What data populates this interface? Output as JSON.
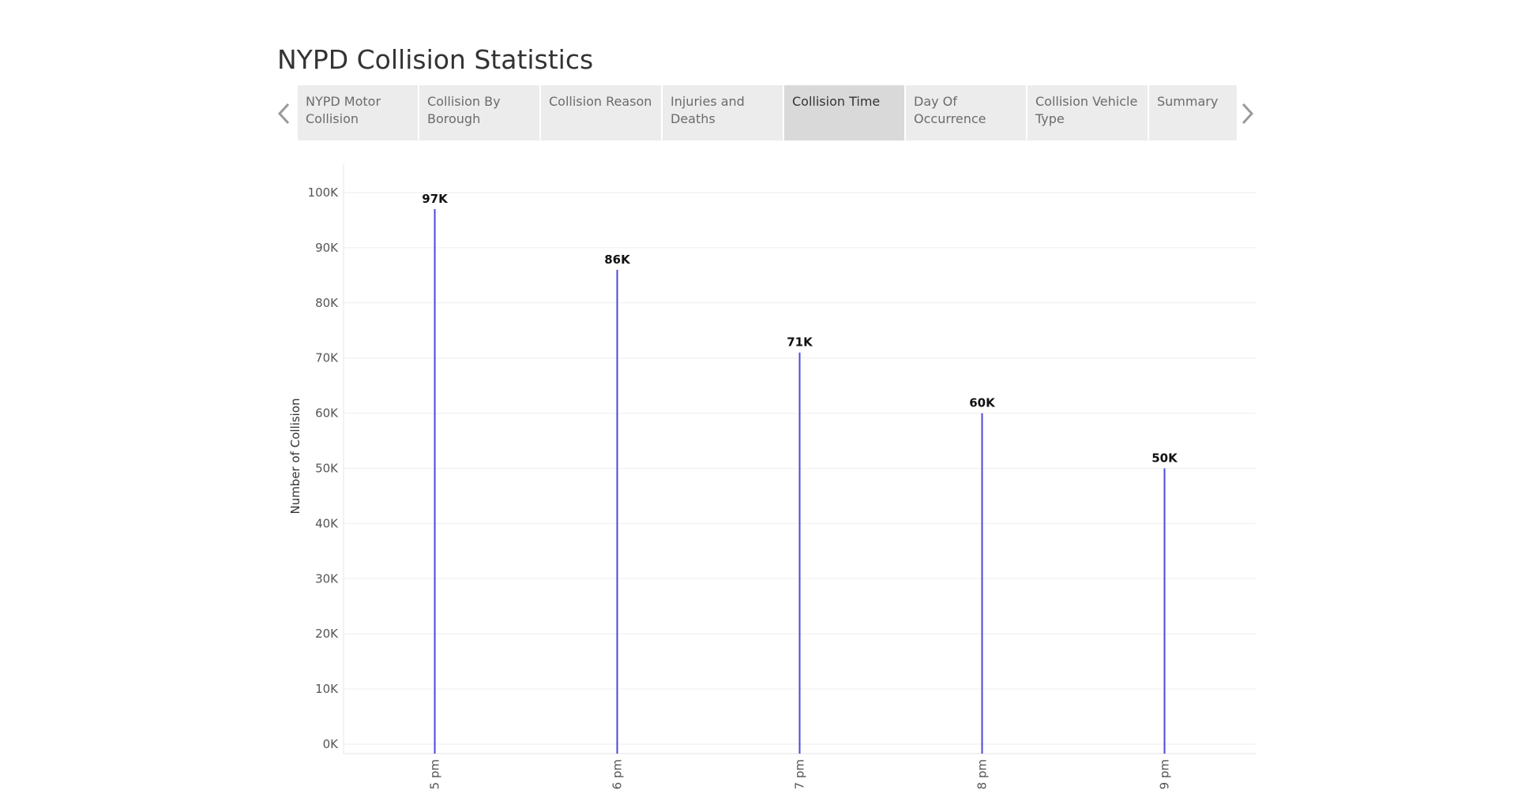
{
  "story": {
    "title": "NYPD Collision Statistics"
  },
  "navigation": {
    "prev_icon": "chevron-left-icon",
    "next_icon": "chevron-right-icon",
    "tabs": [
      {
        "label": "NYPD Motor Collision",
        "active": false
      },
      {
        "label": "Collision By Borough",
        "active": false
      },
      {
        "label": "Collision Reason",
        "active": false
      },
      {
        "label": "Injuries and Deaths",
        "active": false
      },
      {
        "label": "Collision Time",
        "active": true
      },
      {
        "label": "Day Of Occurrence",
        "active": false
      },
      {
        "label": "Collision Vehicle Type",
        "active": false
      },
      {
        "label": "Summary",
        "active": false
      }
    ]
  },
  "colors": {
    "bar": "#4a4ad8",
    "grid": "#eeeeee",
    "active_tab": "#d9d9d9",
    "tab": "#ececec"
  },
  "chart_data": {
    "type": "bar",
    "ylabel": "Number of Collision",
    "xlabel": "",
    "categories": [
      "5 pm",
      "6 pm",
      "7 pm",
      "8 pm",
      "9 pm"
    ],
    "values": [
      97000,
      86000,
      71000,
      60000,
      50000
    ],
    "data_labels": [
      "97K",
      "86K",
      "71K",
      "60K",
      "50K"
    ],
    "ylim": [
      0,
      100000
    ],
    "yticks": [
      0,
      10000,
      20000,
      30000,
      40000,
      50000,
      60000,
      70000,
      80000,
      90000,
      100000
    ],
    "ytick_labels": [
      "0K",
      "10K",
      "20K",
      "30K",
      "40K",
      "50K",
      "60K",
      "70K",
      "80K",
      "90K",
      "100K"
    ],
    "grid": true,
    "legend": "none"
  }
}
